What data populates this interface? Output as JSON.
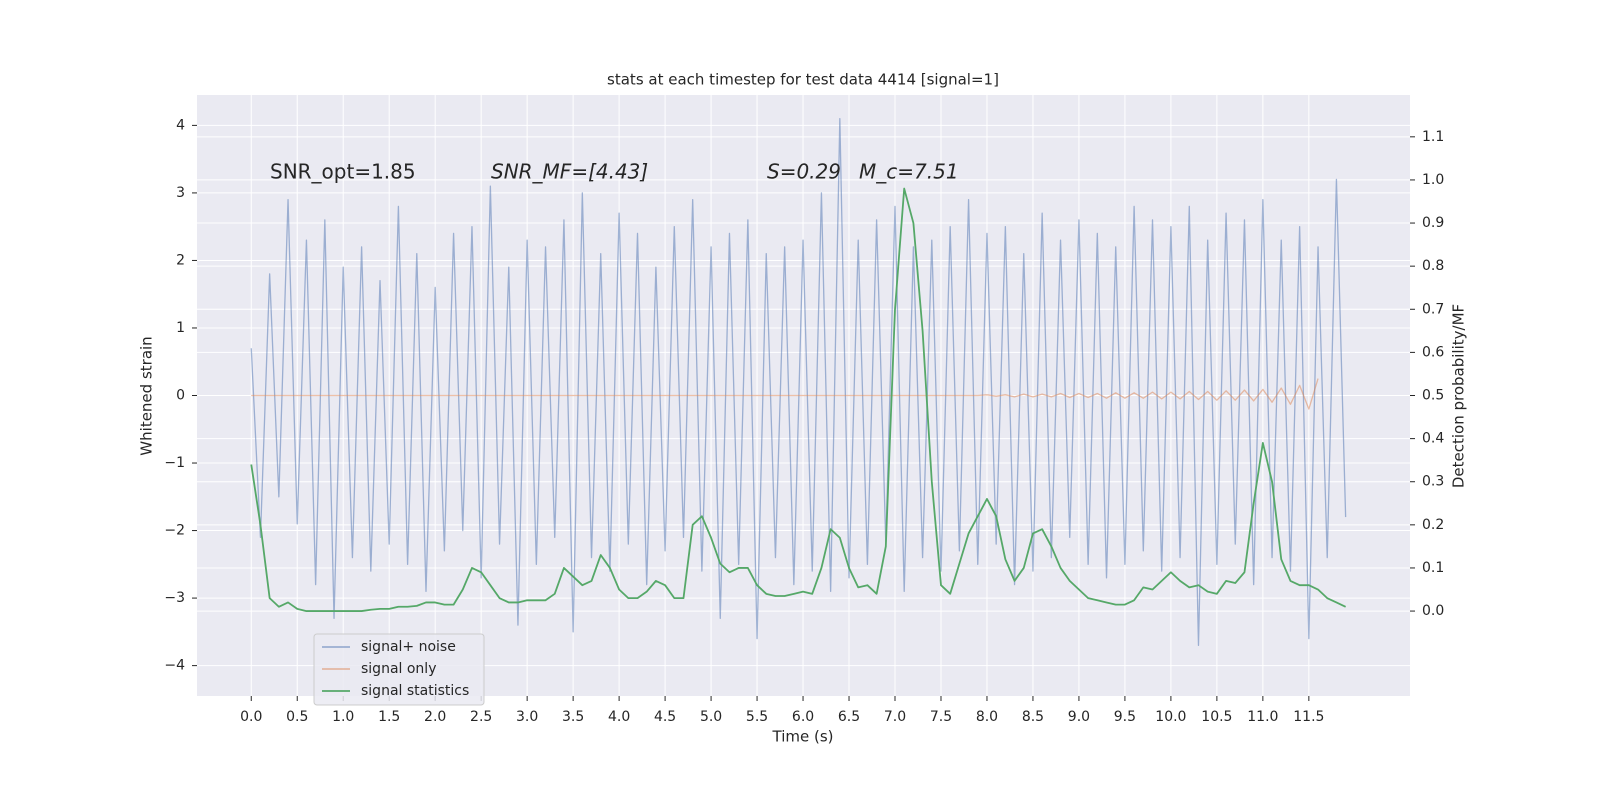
{
  "chart_data": {
    "type": "line",
    "title": "stats at each timestep for test data 4414 [signal=1]",
    "xlabel": "Time (s)",
    "ylabel": "Whitened strain",
    "y2label": "Detection probability/MF",
    "annotations": [
      "SNR_opt=1.85",
      "SNR_MF=[4.43]",
      "S=0.29",
      "M_c=7.51"
    ],
    "x": [
      0.0,
      0.1,
      0.2,
      0.3,
      0.4,
      0.5,
      0.6,
      0.7,
      0.8,
      0.9,
      1.0,
      1.1,
      1.2,
      1.3,
      1.4,
      1.5,
      1.6,
      1.7,
      1.8,
      1.9,
      2.0,
      2.1,
      2.2,
      2.3,
      2.4,
      2.5,
      2.6,
      2.7,
      2.8,
      2.9,
      3.0,
      3.1,
      3.2,
      3.3,
      3.4,
      3.5,
      3.6,
      3.7,
      3.8,
      3.9,
      4.0,
      4.1,
      4.2,
      4.3,
      4.4,
      4.5,
      4.6,
      4.7,
      4.8,
      4.9,
      5.0,
      5.1,
      5.2,
      5.3,
      5.4,
      5.5,
      5.6,
      5.7,
      5.8,
      5.9,
      6.0,
      6.1,
      6.2,
      6.3,
      6.4,
      6.5,
      6.6,
      6.7,
      6.8,
      6.9,
      7.0,
      7.1,
      7.2,
      7.3,
      7.4,
      7.5,
      7.6,
      7.7,
      7.8,
      7.9,
      8.0,
      8.1,
      8.2,
      8.3,
      8.4,
      8.5,
      8.6,
      8.7,
      8.8,
      8.9,
      9.0,
      9.1,
      9.2,
      9.3,
      9.4,
      9.5,
      9.6,
      9.7,
      9.8,
      9.9,
      10.0,
      10.1,
      10.2,
      10.3,
      10.4,
      10.5,
      10.6,
      10.7,
      10.8,
      10.9,
      11.0,
      11.1,
      11.2,
      11.3,
      11.4,
      11.5,
      11.6,
      11.7,
      11.8,
      11.9
    ],
    "series": [
      {
        "name": "signal+ noise",
        "color": "#4c72b0",
        "opacity": 0.5,
        "values": [
          0.7,
          -2.1,
          1.8,
          -1.5,
          2.9,
          -1.9,
          2.3,
          -2.8,
          2.6,
          -3.3,
          1.9,
          -2.4,
          2.2,
          -2.6,
          1.7,
          -2.2,
          2.8,
          -2.5,
          2.1,
          -2.9,
          1.6,
          -2.3,
          2.4,
          -2.0,
          2.5,
          -2.7,
          3.1,
          -2.2,
          1.9,
          -3.4,
          2.3,
          -2.5,
          2.2,
          -2.1,
          2.6,
          -3.5,
          3.0,
          -2.4,
          2.1,
          -2.6,
          2.7,
          -2.2,
          2.4,
          -2.8,
          1.9,
          -2.3,
          2.5,
          -2.1,
          2.9,
          -2.6,
          2.2,
          -3.3,
          2.4,
          -2.5,
          2.6,
          -3.6,
          2.1,
          -2.4,
          2.2,
          -2.8,
          2.3,
          -2.6,
          3.0,
          -2.9,
          4.1,
          -2.7,
          2.3,
          -2.5,
          2.6,
          -2.2,
          2.8,
          -2.9,
          2.2,
          -2.4,
          2.3,
          -2.6,
          2.5,
          -2.3,
          2.9,
          -2.5,
          2.4,
          -2.2,
          2.5,
          -2.8,
          2.1,
          -2.6,
          2.7,
          -2.4,
          2.3,
          -2.1,
          2.6,
          -2.5,
          2.4,
          -2.7,
          2.2,
          -2.5,
          2.8,
          -2.3,
          2.6,
          -2.6,
          2.5,
          -2.4,
          2.8,
          -3.7,
          2.3,
          -2.5,
          2.7,
          -2.2,
          2.6,
          -2.8,
          2.9,
          -2.4,
          2.3,
          -2.6,
          2.5,
          -3.6,
          2.2,
          -2.4,
          3.2,
          -1.8
        ]
      },
      {
        "name": "signal only",
        "color": "#dd8452",
        "opacity": 0.5,
        "values": [
          0,
          0,
          0,
          0,
          0,
          0,
          0,
          0,
          0,
          0,
          0,
          0,
          0,
          0,
          0,
          0,
          0,
          0,
          0,
          0,
          0,
          0,
          0,
          0,
          0,
          0,
          0,
          0,
          0,
          0,
          0,
          0,
          0,
          0,
          0,
          0,
          0,
          0,
          0,
          0,
          0,
          0,
          0,
          0,
          0,
          0,
          0,
          0,
          0,
          0,
          0,
          0,
          0,
          0,
          0,
          0,
          0,
          0,
          0,
          0,
          0,
          0,
          0,
          0,
          0,
          0,
          0,
          0,
          0,
          0,
          0,
          0,
          0,
          0,
          0,
          0,
          0,
          0,
          0,
          0,
          0.01,
          -0.01,
          0.01,
          -0.02,
          0.02,
          -0.02,
          0.02,
          -0.02,
          0.03,
          -0.03,
          0.03,
          -0.03,
          0.03,
          -0.04,
          0.04,
          -0.04,
          0.04,
          -0.04,
          0.05,
          -0.05,
          0.05,
          -0.05,
          0.06,
          -0.06,
          0.06,
          -0.07,
          0.07,
          -0.07,
          0.08,
          -0.08,
          0.09,
          -0.1,
          0.11,
          -0.13,
          0.15,
          -0.2,
          0.25,
          null,
          null,
          null
        ]
      },
      {
        "name": "signal statistics",
        "color": "#55a868",
        "opacity": 1,
        "axis": "y2",
        "values": [
          0.34,
          0.2,
          0.03,
          0.01,
          0.02,
          0.005,
          0.0,
          0.0,
          0.0,
          0.0,
          0.0,
          0.0,
          0.0,
          0.003,
          0.005,
          0.005,
          0.01,
          0.01,
          0.012,
          0.02,
          0.02,
          0.015,
          0.015,
          0.05,
          0.1,
          0.09,
          0.06,
          0.03,
          0.02,
          0.02,
          0.025,
          0.025,
          0.025,
          0.04,
          0.1,
          0.08,
          0.06,
          0.07,
          0.13,
          0.1,
          0.05,
          0.03,
          0.03,
          0.045,
          0.07,
          0.06,
          0.03,
          0.03,
          0.2,
          0.22,
          0.17,
          0.11,
          0.09,
          0.1,
          0.1,
          0.06,
          0.04,
          0.035,
          0.035,
          0.04,
          0.045,
          0.04,
          0.1,
          0.19,
          0.17,
          0.1,
          0.055,
          0.06,
          0.04,
          0.15,
          0.7,
          0.98,
          0.9,
          0.65,
          0.3,
          0.06,
          0.04,
          0.11,
          0.18,
          0.22,
          0.26,
          0.22,
          0.12,
          0.07,
          0.1,
          0.18,
          0.19,
          0.15,
          0.1,
          0.07,
          0.05,
          0.03,
          0.025,
          0.02,
          0.015,
          0.015,
          0.025,
          0.055,
          0.05,
          0.07,
          0.09,
          0.07,
          0.055,
          0.06,
          0.045,
          0.04,
          0.07,
          0.065,
          0.09,
          0.25,
          0.39,
          0.3,
          0.12,
          0.07,
          0.06,
          0.06,
          0.05,
          0.03,
          0.02,
          0.01
        ]
      }
    ],
    "xlim": [
      -0.59,
      12.6
    ],
    "xticks": [
      {
        "value": 0,
        "label": "0.0"
      },
      0.5,
      {
        "value": 1,
        "label": "1.0"
      },
      1.5,
      {
        "value": 2,
        "label": "2.0"
      },
      2.5,
      {
        "value": 3,
        "label": "3.0"
      },
      3.5,
      {
        "value": 4,
        "label": "4.0"
      },
      4.5,
      {
        "value": 5,
        "label": "5.0"
      },
      5.5,
      {
        "value": 6,
        "label": "6.0"
      },
      6.5,
      {
        "value": 7,
        "label": "7.0"
      },
      7.5,
      {
        "value": 8,
        "label": "8.0"
      },
      8.5,
      {
        "value": 9,
        "label": "9.0"
      },
      9.5,
      {
        "value": 10,
        "label": "10.0"
      },
      10.5,
      {
        "value": 11,
        "label": "11.0"
      },
      11.5
    ],
    "ylim": [
      -4.45,
      4.45
    ],
    "yticks": [
      {
        "value": -4,
        "label": "−4"
      },
      {
        "value": -3,
        "label": "−3"
      },
      {
        "value": -2,
        "label": "−2"
      },
      {
        "value": -1,
        "label": "−1"
      },
      0,
      1,
      2,
      3,
      4
    ],
    "y2lim": [
      -0.197,
      1.197
    ],
    "y2ticks": [
      {
        "value": 0,
        "label": "0.0"
      },
      0.1,
      0.2,
      0.3,
      0.4,
      0.5,
      0.6,
      0.7,
      0.8,
      0.9,
      {
        "value": 1,
        "label": "1.0"
      },
      1.1
    ],
    "grid": true,
    "legend": "lower left"
  }
}
